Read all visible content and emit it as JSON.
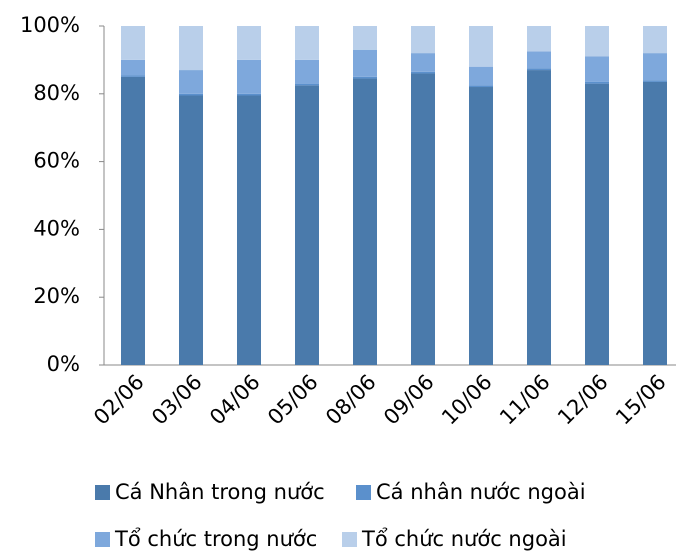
{
  "chart_data": {
    "type": "bar",
    "stacked": true,
    "categories": [
      "02/06",
      "03/06",
      "04/06",
      "05/06",
      "08/06",
      "09/06",
      "10/06",
      "11/06",
      "12/06",
      "15/06"
    ],
    "series": [
      {
        "name": "Cá Nhân trong nước",
        "color": "#4a7aab",
        "values": [
          85,
          79.5,
          79.5,
          82.5,
          84.5,
          86,
          82,
          87,
          83,
          83.5
        ]
      },
      {
        "name": "Cá nhân nước ngoài",
        "color": "#5b90cc",
        "values": [
          0.5,
          0.5,
          0.5,
          0.5,
          0.5,
          0.5,
          0.5,
          0.5,
          0.5,
          0.5
        ]
      },
      {
        "name": "Tổ chức trong nước",
        "color": "#7ea8dc",
        "values": [
          4.5,
          7,
          10,
          7,
          8,
          5.5,
          5.5,
          5,
          7.5,
          8
        ]
      },
      {
        "name": "Tổ chức nước ngoài",
        "color": "#b9cfea",
        "values": [
          10,
          13,
          10,
          10,
          7,
          8,
          12,
          7.5,
          9,
          8
        ]
      }
    ],
    "ylim": [
      0,
      100
    ],
    "yticks": [
      {
        "value": 0,
        "label": "0%"
      },
      {
        "value": 20,
        "label": "20%"
      },
      {
        "value": 40,
        "label": "40%"
      },
      {
        "value": 60,
        "label": "60%"
      },
      {
        "value": 80,
        "label": "80%"
      },
      {
        "value": 100,
        "label": "100%"
      }
    ],
    "grid": false
  }
}
